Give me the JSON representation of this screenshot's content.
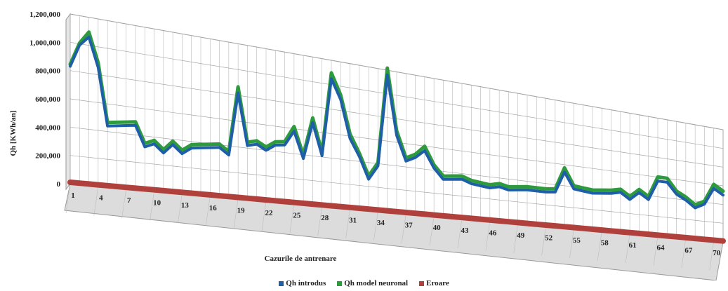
{
  "chart_data": {
    "type": "line",
    "title": "",
    "xlabel": "Cazurile de antrenare",
    "ylabel": "Qh [KWh/an]",
    "ylim": [
      0,
      1200000
    ],
    "yticks": [
      "0",
      "200,000",
      "400,000",
      "600,000",
      "800,000",
      "1,000,000",
      "1,200,000"
    ],
    "ytick_values": [
      0,
      200000,
      400000,
      600000,
      800000,
      1000000,
      1200000
    ],
    "xticks": [
      "1",
      "4",
      "7",
      "10",
      "13",
      "16",
      "19",
      "22",
      "25",
      "28",
      "31",
      "34",
      "37",
      "40",
      "43",
      "46",
      "49",
      "52",
      "55",
      "58",
      "61",
      "64",
      "67",
      "70"
    ],
    "grid": true,
    "legend_position": "bottom",
    "colors": {
      "introdus": "#1f5fa8",
      "neuronal": "#2e9a3e",
      "eroare": "#b0403b"
    },
    "series": [
      {
        "name": "Qh introdus",
        "values": [
          830000,
          990000,
          1060000,
          850000,
          440000,
          450000,
          460000,
          470000,
          320000,
          350000,
          290000,
          360000,
          300000,
          350000,
          360000,
          370000,
          380000,
          330000,
          820000,
          420000,
          440000,
          400000,
          450000,
          460000,
          580000,
          370000,
          670000,
          410000,
          1050000,
          890000,
          580000,
          440000,
          260000,
          380000,
          1160000,
          660000,
          450000,
          490000,
          560000,
          420000,
          330000,
          340000,
          350000,
          320000,
          310000,
          300000,
          320000,
          300000,
          310000,
          320000,
          320000,
          320000,
          330000,
          530000,
          380000,
          370000,
          360000,
          370000,
          380000,
          400000,
          340000,
          420000,
          360000,
          560000,
          560000,
          450000,
          400000,
          330000,
          380000,
          560000,
          500000
        ]
      },
      {
        "name": "Qh model neuronal",
        "values": [
          830000,
          990000,
          1080000,
          870000,
          450000,
          460000,
          470000,
          480000,
          330000,
          360000,
          300000,
          370000,
          310000,
          360000,
          370000,
          380000,
          390000,
          340000,
          850000,
          430000,
          450000,
          410000,
          460000,
          470000,
          600000,
          380000,
          690000,
          420000,
          1080000,
          910000,
          600000,
          450000,
          270000,
          390000,
          1200000,
          680000,
          460000,
          500000,
          580000,
          430000,
          340000,
          350000,
          360000,
          330000,
          320000,
          310000,
          330000,
          310000,
          320000,
          330000,
          330000,
          330000,
          340000,
          550000,
          390000,
          380000,
          370000,
          380000,
          390000,
          410000,
          350000,
          430000,
          370000,
          580000,
          580000,
          460000,
          410000,
          340000,
          390000,
          580000,
          520000
        ]
      },
      {
        "name": "Eroare",
        "values": [
          10000,
          10000,
          10000,
          10000,
          10000,
          10000,
          10000,
          10000,
          10000,
          10000,
          10000,
          10000,
          10000,
          10000,
          10000,
          10000,
          10000,
          10000,
          10000,
          10000,
          10000,
          10000,
          10000,
          10000,
          10000,
          10000,
          10000,
          10000,
          10000,
          10000,
          10000,
          10000,
          10000,
          10000,
          10000,
          10000,
          10000,
          10000,
          10000,
          10000,
          10000,
          10000,
          10000,
          10000,
          10000,
          10000,
          10000,
          10000,
          10000,
          10000,
          10000,
          10000,
          10000,
          10000,
          10000,
          10000,
          10000,
          10000,
          10000,
          10000,
          10000,
          10000,
          10000,
          10000,
          10000,
          10000,
          10000,
          10000,
          10000,
          10000,
          10000
        ]
      }
    ]
  }
}
